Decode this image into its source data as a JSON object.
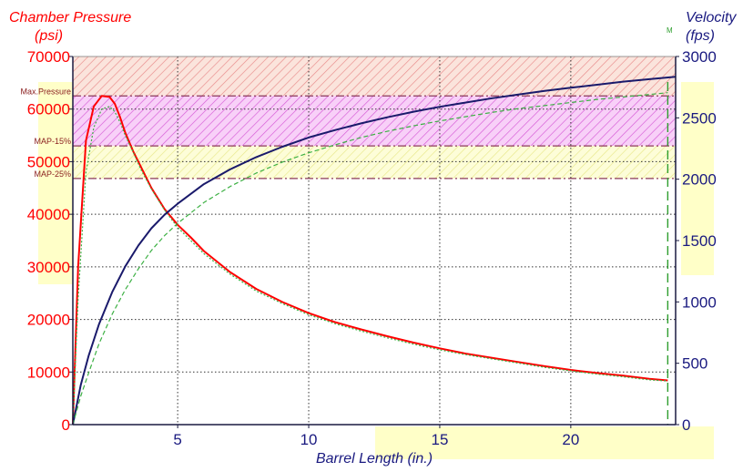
{
  "chart_data": {
    "type": "line",
    "title": "",
    "xlabel": "Barrel Length (in.)",
    "ylabel_left": [
      "Chamber Pressure",
      "(psi)"
    ],
    "ylabel_right": [
      "Velocity",
      "(fps)"
    ],
    "xlim": [
      1,
      24
    ],
    "ylim_left": [
      0,
      70000
    ],
    "ylim_right": [
      0,
      3000
    ],
    "x_ticks": [
      "5",
      "10",
      "15",
      "20"
    ],
    "x_tick_values": [
      5,
      10,
      15,
      20
    ],
    "y_left_ticks": [
      "0",
      "10000",
      "20000",
      "30000",
      "40000",
      "50000",
      "60000",
      "70000"
    ],
    "y_left_tick_values": [
      0,
      10000,
      20000,
      30000,
      40000,
      50000,
      60000,
      70000
    ],
    "y_right_ticks": [
      "0",
      "500",
      "1000",
      "1500",
      "2000",
      "2500",
      "3000"
    ],
    "y_right_tick_values": [
      0,
      500,
      1000,
      1500,
      2000,
      2500,
      3000
    ],
    "grid": true,
    "reference_lines": [
      {
        "label": "Max.Pressure",
        "value": 62500
      },
      {
        "label": "MAP-15%",
        "value": 53000
      },
      {
        "label": "MAP-25%",
        "value": 46800
      }
    ],
    "muzzle_marker": {
      "label": "M",
      "x": 23.7
    },
    "series": [
      {
        "axis": "left",
        "color": "#ff0000",
        "style": "solid",
        "x": [
          1.0,
          1.2,
          1.5,
          1.8,
          2.1,
          2.4,
          2.6,
          2.8,
          3.0,
          3.3,
          3.6,
          4.0,
          4.5,
          5.0,
          5.5,
          6.0,
          7.0,
          8.0,
          9.0,
          10.0,
          11.0,
          12.0,
          13.0,
          14.0,
          15.0,
          16.0,
          17.0,
          18.0,
          19.0,
          20.0,
          21.0,
          22.0,
          23.0,
          23.7
        ],
        "values": [
          0,
          30000,
          54000,
          60500,
          62500,
          62300,
          61000,
          58500,
          55500,
          52000,
          49000,
          45000,
          41000,
          38000,
          35600,
          33000,
          29000,
          25800,
          23300,
          21200,
          19500,
          18100,
          16800,
          15600,
          14500,
          13500,
          12700,
          11900,
          11100,
          10400,
          9800,
          9300,
          8700,
          8400
        ]
      },
      {
        "axis": "left",
        "color": "#3cb043",
        "style": "dotted",
        "x": [
          1.0,
          1.2,
          1.5,
          1.8,
          2.1,
          2.4,
          2.6,
          2.8,
          3.0,
          3.3,
          3.6,
          4.0,
          4.5,
          5.0,
          5.5,
          6.0,
          7.0,
          8.0,
          9.0,
          10.0,
          11.0,
          12.0,
          13.0,
          14.0,
          15.0,
          16.0,
          17.0,
          18.0,
          19.0,
          20.0,
          21.0,
          22.0,
          23.0,
          23.7
        ],
        "values": [
          0,
          24000,
          48000,
          56500,
          60000,
          60500,
          59500,
          57500,
          55000,
          51800,
          48500,
          44800,
          40800,
          37500,
          35000,
          32500,
          28600,
          25400,
          23000,
          20900,
          19200,
          17800,
          16500,
          15300,
          14200,
          13300,
          12500,
          11700,
          10900,
          10200,
          9600,
          9100,
          8500,
          8300
        ]
      },
      {
        "axis": "right",
        "color": "#1a1a6b",
        "style": "solid",
        "x": [
          1.0,
          1.3,
          1.6,
          2.0,
          2.5,
          3.0,
          3.5,
          4.0,
          4.5,
          5.0,
          6.0,
          7.0,
          8.0,
          9.0,
          10.0,
          11.0,
          12.0,
          13.0,
          14.0,
          15.0,
          16.0,
          17.0,
          18.0,
          19.0,
          20.0,
          21.0,
          22.0,
          23.0,
          24.0
        ],
        "values": [
          0,
          320,
          560,
          820,
          1080,
          1290,
          1460,
          1600,
          1710,
          1800,
          1960,
          2080,
          2180,
          2265,
          2340,
          2400,
          2455,
          2505,
          2550,
          2590,
          2625,
          2660,
          2690,
          2720,
          2745,
          2770,
          2795,
          2815,
          2835
        ]
      },
      {
        "axis": "right",
        "color": "#3cb043",
        "style": "dashed",
        "x": [
          1.0,
          1.3,
          1.6,
          2.0,
          2.5,
          3.0,
          3.5,
          4.0,
          4.5,
          5.0,
          6.0,
          7.0,
          8.0,
          9.0,
          10.0,
          11.0,
          12.0,
          13.0,
          14.0,
          15.0,
          16.0,
          17.0,
          18.0,
          19.0,
          20.0,
          21.0,
          22.0,
          23.0,
          23.7
        ],
        "values": [
          0,
          230,
          420,
          660,
          900,
          1100,
          1270,
          1420,
          1540,
          1640,
          1810,
          1940,
          2050,
          2140,
          2215,
          2280,
          2340,
          2390,
          2435,
          2475,
          2510,
          2545,
          2575,
          2600,
          2625,
          2650,
          2670,
          2690,
          2705
        ]
      }
    ]
  }
}
